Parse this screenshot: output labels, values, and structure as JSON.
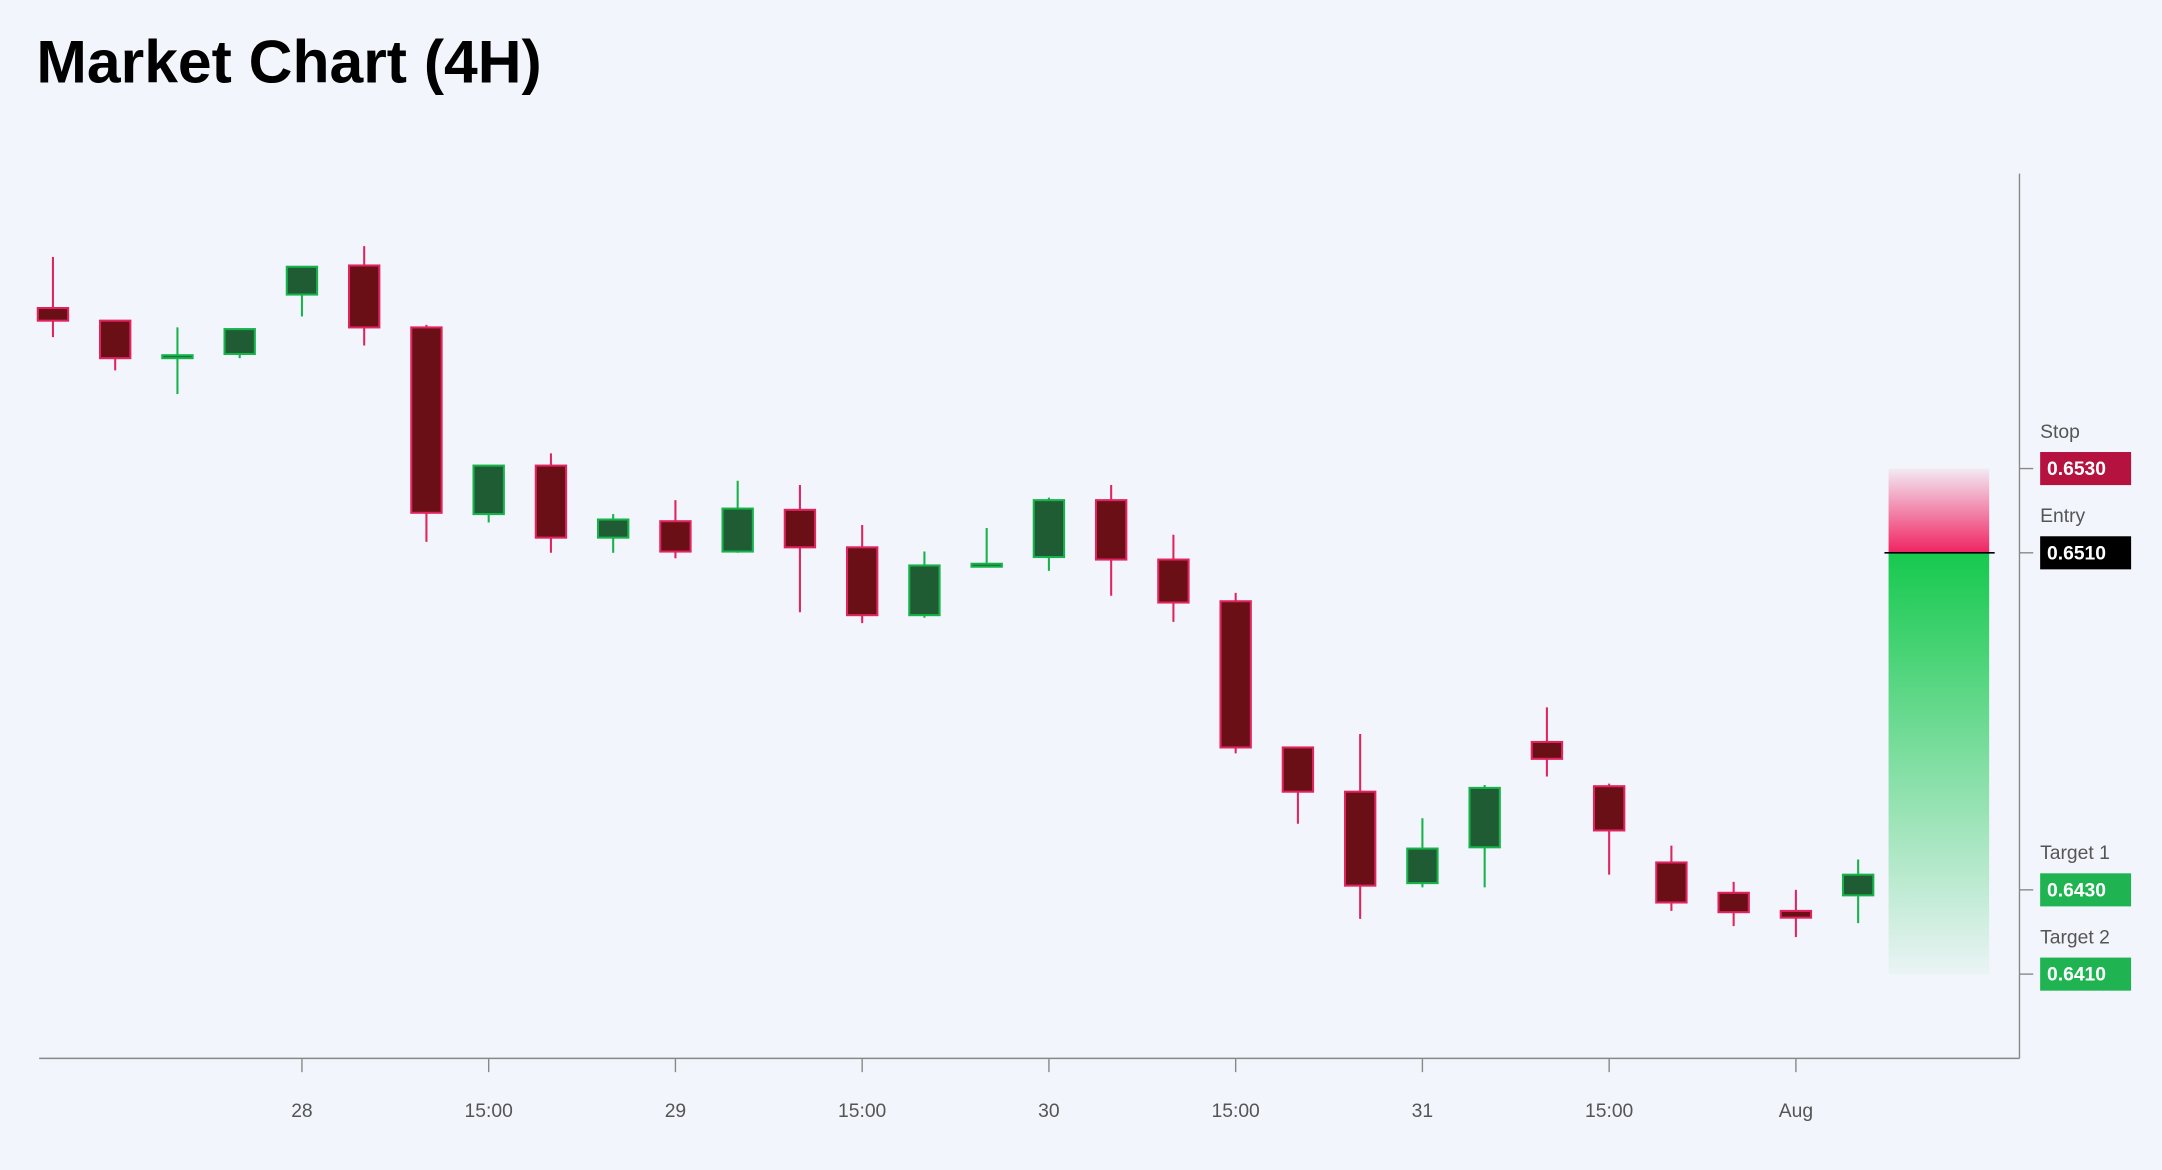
{
  "chart_data": {
    "type": "candlestick",
    "title": "Market Chart (4H)",
    "categories": [
      null,
      null,
      null,
      null,
      "28",
      null,
      null,
      "15:00",
      null,
      null,
      "29",
      null,
      null,
      "15:00",
      null,
      null,
      "30",
      null,
      null,
      "15:00",
      null,
      null,
      "31",
      null,
      null,
      "15:00",
      null,
      null,
      "Aug",
      null
    ],
    "open": [
      0.65681,
      0.65651,
      0.65562,
      0.65572,
      0.65713,
      0.65782,
      0.65635,
      0.65192,
      0.65307,
      0.65136,
      0.65175,
      0.65103,
      0.65202,
      0.65113,
      0.64952,
      0.65067,
      0.6509,
      0.65225,
      0.65084,
      0.64985,
      0.64638,
      0.64533,
      0.64316,
      0.64401,
      0.64651,
      0.64546,
      0.64365,
      0.64293,
      0.6425,
      0.64287
    ],
    "high": [
      0.65802,
      0.65651,
      0.65635,
      0.65631,
      0.65779,
      0.65828,
      0.65641,
      0.65307,
      0.65336,
      0.65192,
      0.65225,
      0.65271,
      0.65261,
      0.65166,
      0.65103,
      0.65159,
      0.65231,
      0.65261,
      0.65143,
      0.65005,
      0.64638,
      0.6467,
      0.6447,
      0.64549,
      0.64733,
      0.64552,
      0.64405,
      0.64319,
      0.643,
      0.64372
    ],
    "low": [
      0.65612,
      0.65533,
      0.65477,
      0.65562,
      0.65661,
      0.65592,
      0.65126,
      0.65172,
      0.651,
      0.651,
      0.65087,
      0.651,
      0.64959,
      0.64933,
      0.64946,
      0.65067,
      0.65057,
      0.64998,
      0.64936,
      0.64624,
      0.64457,
      0.64231,
      0.64306,
      0.64306,
      0.64569,
      0.64336,
      0.6425,
      0.64214,
      0.64188,
      0.64221
    ],
    "close": [
      0.65651,
      0.65562,
      0.65569,
      0.65631,
      0.65779,
      0.65635,
      0.65195,
      0.65307,
      0.65136,
      0.65179,
      0.65103,
      0.65205,
      0.65113,
      0.64952,
      0.6507,
      0.65074,
      0.65225,
      0.65084,
      0.64982,
      0.64638,
      0.64533,
      0.6431,
      0.64398,
      0.64542,
      0.64611,
      0.64441,
      0.6427,
      0.64247,
      0.64234,
      0.64336
    ],
    "up_color": "#1f5c33",
    "up_edge": "#16b34a",
    "down_color": "#6a0f16",
    "down_edge": "#e0245e",
    "ylim": [
      0.639,
      0.66
    ],
    "yticks": [
      {
        "value": 0.653,
        "label": "0.6530"
      },
      {
        "value": 0.651,
        "label": "0.6510"
      },
      {
        "value": 0.643,
        "label": "0.6430"
      },
      {
        "value": 0.641,
        "label": "0.6410"
      }
    ],
    "ytick_names": [
      "Stop",
      "Entry",
      "Target 1",
      "Target 2"
    ],
    "ytick_colors": [
      "#b5123f",
      "#000000",
      "#1fb352",
      "#1fb352"
    ]
  }
}
